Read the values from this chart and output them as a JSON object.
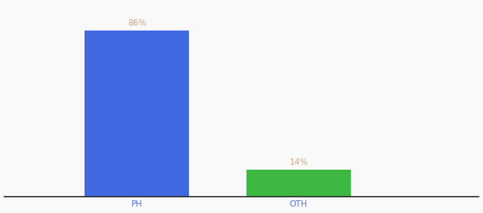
{
  "categories": [
    "PH",
    "OTH"
  ],
  "values": [
    86,
    14
  ],
  "bar_colors": [
    "#4169e1",
    "#3cb843"
  ],
  "label_color": "#c8a882",
  "label_fontsize": 8.5,
  "tick_fontsize": 8.5,
  "tick_color": "#5577cc",
  "background_color": "#f9f9f9",
  "ylim": [
    0,
    100
  ],
  "bar_width": 0.22,
  "x_positions": [
    0.28,
    0.62
  ],
  "xlim": [
    0.0,
    1.0
  ],
  "figsize": [
    6.8,
    3.0
  ],
  "dpi": 100
}
